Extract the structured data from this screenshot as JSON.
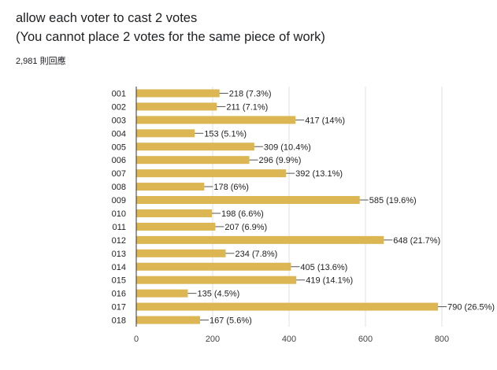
{
  "header": {
    "title_line1": "allow each voter to cast 2 votes",
    "title_line2": "(You cannot place 2 votes for the same piece of work)",
    "responses": "2,981 則回應"
  },
  "colors": {
    "bar": "#dbb652",
    "gridline": "#e0e0e0",
    "axis": "#333333",
    "leader": "#555555"
  },
  "chart_data": {
    "type": "bar",
    "orientation": "horizontal",
    "categories": [
      "001",
      "002",
      "003",
      "004",
      "005",
      "006",
      "007",
      "008",
      "009",
      "010",
      "011",
      "012",
      "013",
      "014",
      "015",
      "016",
      "017",
      "018"
    ],
    "values": [
      218,
      211,
      417,
      153,
      309,
      296,
      392,
      178,
      585,
      198,
      207,
      648,
      234,
      405,
      419,
      135,
      790,
      167
    ],
    "data_labels": [
      "218 (7.3%)",
      "211 (7.1%)",
      "417 (14%)",
      "153 (5.1%)",
      "309 (10.4%)",
      "296 (9.9%)",
      "392 (13.1%)",
      "178 (6%)",
      "585 (19.6%)",
      "198 (6.6%)",
      "207 (6.9%)",
      "648 (21.7%)",
      "234 (7.8%)",
      "405 (13.6%)",
      "419 (14.1%)",
      "135 (4.5%)",
      "790 (26.5%)",
      "167 (5.6%)"
    ],
    "xlim": [
      0,
      800
    ],
    "xticks": [
      "0",
      "200",
      "400",
      "600",
      "800"
    ],
    "grid": true,
    "legend": "none"
  }
}
